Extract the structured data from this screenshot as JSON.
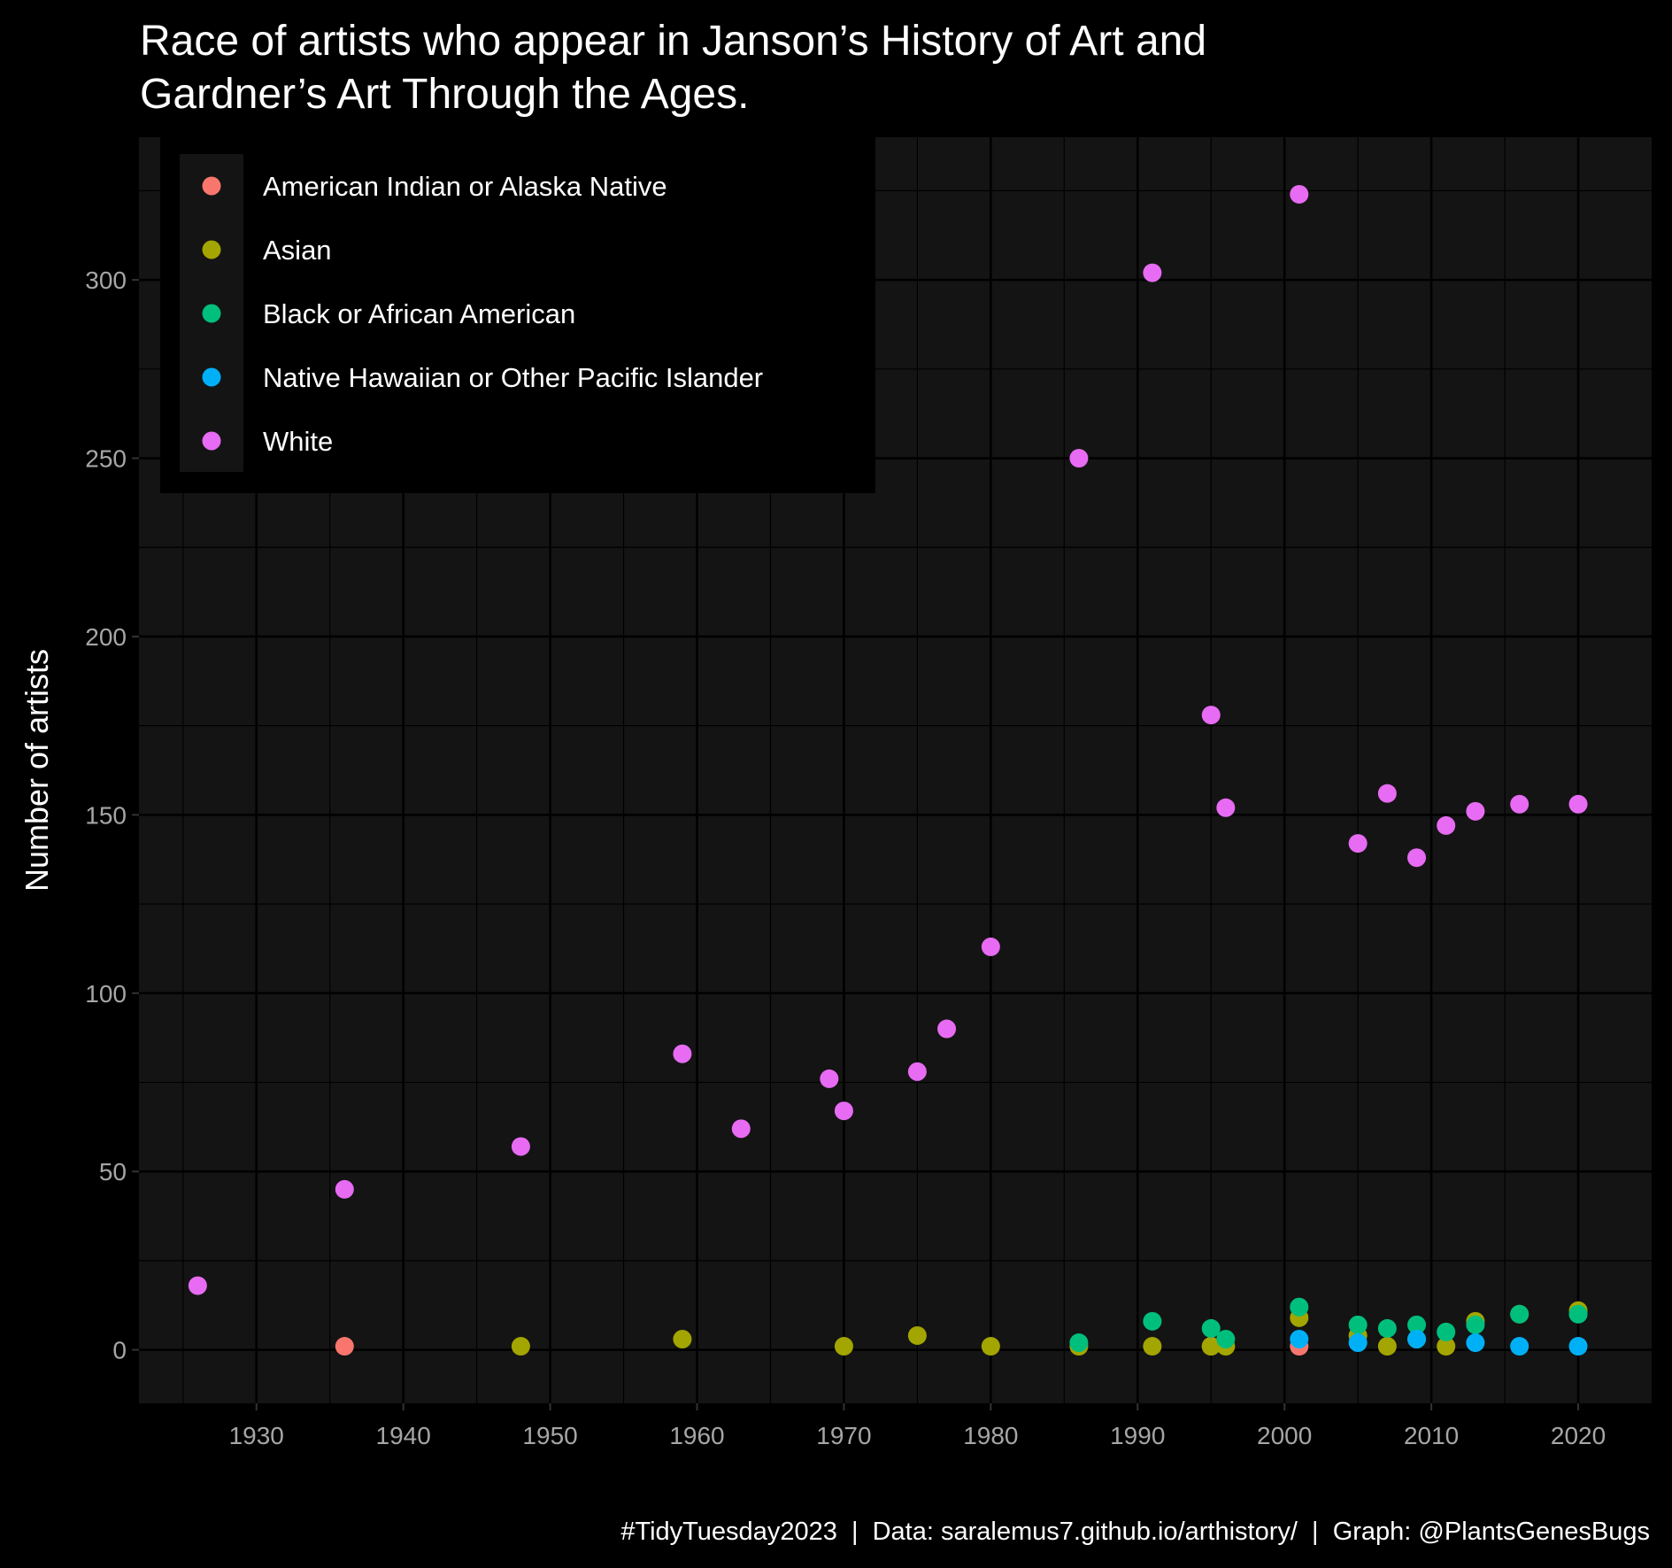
{
  "chart_data": {
    "type": "scatter",
    "title": "Race of artists who appear in Janson’s History of Art and Gardner’s Art Through the Ages.",
    "title_lines": [
      "Race of artists who appear in Janson’s History of Art and",
      "Gardner’s Art Through the Ages."
    ],
    "xlabel": "",
    "ylabel": "Number of artists",
    "xlim": [
      1922,
      2025
    ],
    "ylim": [
      -15,
      340
    ],
    "x_ticks": [
      1930,
      1940,
      1950,
      1960,
      1970,
      1980,
      1990,
      2000,
      2010,
      2020
    ],
    "y_ticks": [
      0,
      50,
      100,
      150,
      200,
      250,
      300
    ],
    "grid": true,
    "legend_position": "top-left",
    "caption": "#TidyTuesday2023  |  Data: saralemus7.github.io/arthistory/  |  Graph: @PlantsGenesBugs",
    "colors": {
      "background": "#000000",
      "panel": "#141414",
      "grid": "#000000"
    },
    "series": [
      {
        "name": "American Indian or Alaska Native",
        "color": "#F8766D",
        "points": [
          [
            1936,
            1
          ],
          [
            1995,
            1
          ],
          [
            2001,
            1
          ]
        ]
      },
      {
        "name": "Asian",
        "color": "#A3A500",
        "points": [
          [
            1948,
            1
          ],
          [
            1959,
            3
          ],
          [
            1970,
            1
          ],
          [
            1975,
            4
          ],
          [
            1980,
            1
          ],
          [
            1986,
            1
          ],
          [
            1991,
            1
          ],
          [
            1995,
            1
          ],
          [
            1996,
            1
          ],
          [
            2001,
            9
          ],
          [
            2005,
            4
          ],
          [
            2007,
            1
          ],
          [
            2009,
            3
          ],
          [
            2011,
            1
          ],
          [
            2013,
            8
          ],
          [
            2016,
            10
          ],
          [
            2020,
            11
          ]
        ]
      },
      {
        "name": "Black or African American",
        "color": "#00BF7D",
        "points": [
          [
            1986,
            2
          ],
          [
            1991,
            8
          ],
          [
            1995,
            6
          ],
          [
            1996,
            3
          ],
          [
            2001,
            12
          ],
          [
            2005,
            7
          ],
          [
            2007,
            6
          ],
          [
            2009,
            7
          ],
          [
            2011,
            5
          ],
          [
            2013,
            7
          ],
          [
            2016,
            10
          ],
          [
            2020,
            10
          ]
        ]
      },
      {
        "name": "Native Hawaiian or Other Pacific Islander",
        "color": "#00B0F6",
        "points": [
          [
            2001,
            3
          ],
          [
            2005,
            2
          ],
          [
            2009,
            3
          ],
          [
            2013,
            2
          ],
          [
            2016,
            1
          ],
          [
            2020,
            1
          ]
        ]
      },
      {
        "name": "White",
        "color": "#E76BF3",
        "points": [
          [
            1926,
            18
          ],
          [
            1936,
            45
          ],
          [
            1948,
            57
          ],
          [
            1959,
            83
          ],
          [
            1963,
            62
          ],
          [
            1969,
            76
          ],
          [
            1970,
            67
          ],
          [
            1975,
            78
          ],
          [
            1977,
            90
          ],
          [
            1980,
            113
          ],
          [
            1986,
            250
          ],
          [
            1991,
            302
          ],
          [
            1995,
            178
          ],
          [
            1996,
            152
          ],
          [
            2001,
            324
          ],
          [
            2005,
            142
          ],
          [
            2007,
            156
          ],
          [
            2009,
            138
          ],
          [
            2011,
            147
          ],
          [
            2013,
            151
          ],
          [
            2016,
            153
          ],
          [
            2020,
            153
          ]
        ]
      }
    ]
  }
}
